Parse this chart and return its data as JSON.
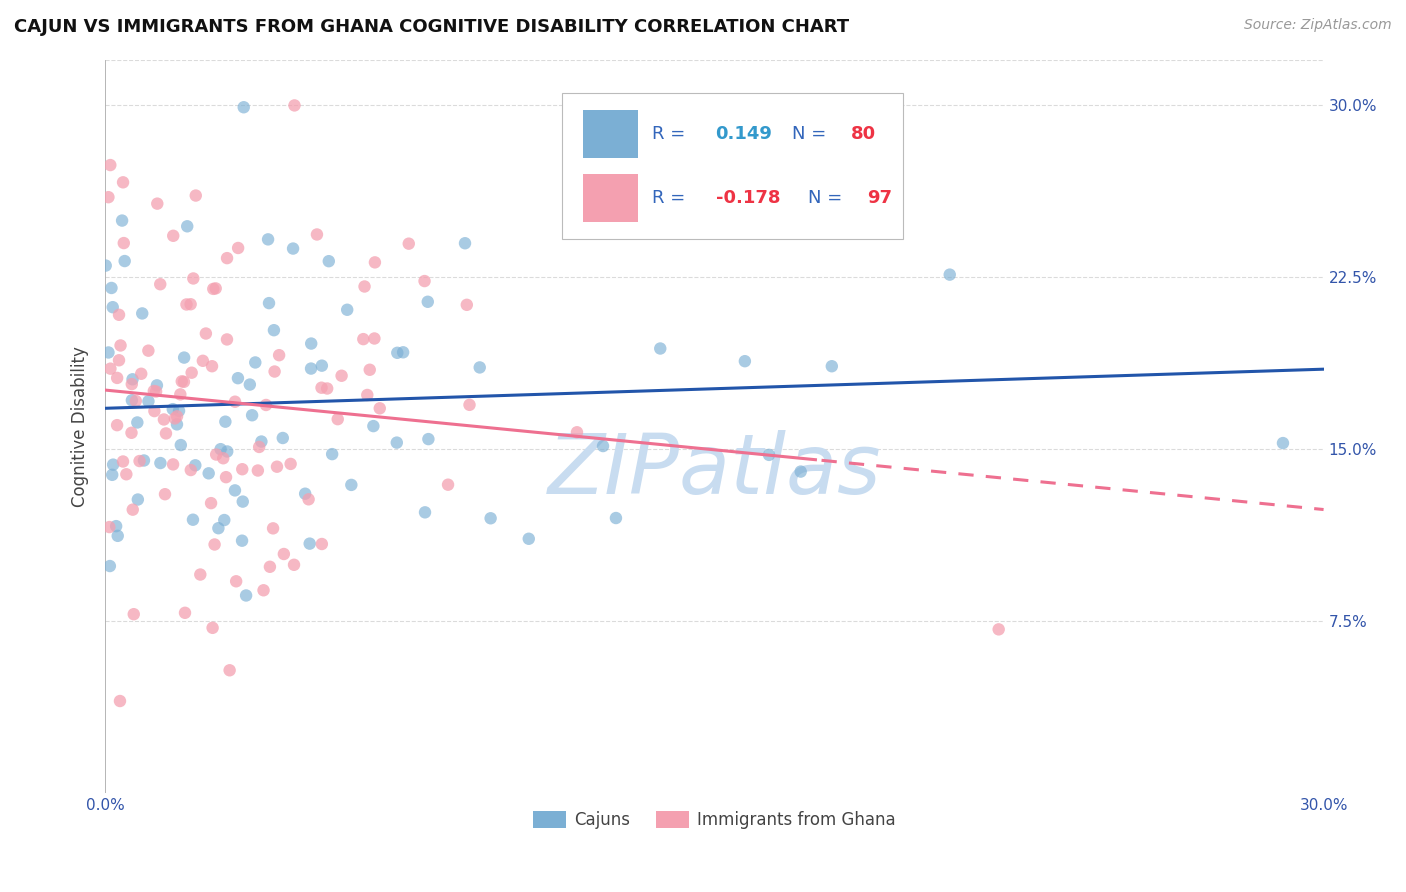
{
  "title": "CAJUN VS IMMIGRANTS FROM GHANA COGNITIVE DISABILITY CORRELATION CHART",
  "source": "Source: ZipAtlas.com",
  "ylabel": "Cognitive Disability",
  "xmin": 0.0,
  "xmax": 0.3,
  "ymin": 0.0,
  "ymax": 0.32,
  "yticks": [
    0.075,
    0.15,
    0.225,
    0.3
  ],
  "ytick_labels": [
    "7.5%",
    "15.0%",
    "22.5%",
    "30.0%"
  ],
  "cajun_R": 0.149,
  "cajun_N": 80,
  "ghana_R": -0.178,
  "ghana_N": 97,
  "cajun_color": "#7BAFD4",
  "ghana_color": "#F4A0B0",
  "trend_cajun_color": "#2255AA",
  "trend_ghana_color": "#EE7090",
  "watermark": "ZIPatlas",
  "watermark_color": "#C8DCF0",
  "background_color": "#FFFFFF",
  "grid_color": "#CCCCCC",
  "legend_R_color": "#3366BB",
  "legend_val_cajun_color": "#3399CC",
  "legend_val_ghana_color": "#EE3344",
  "legend_N_color": "#3366BB"
}
